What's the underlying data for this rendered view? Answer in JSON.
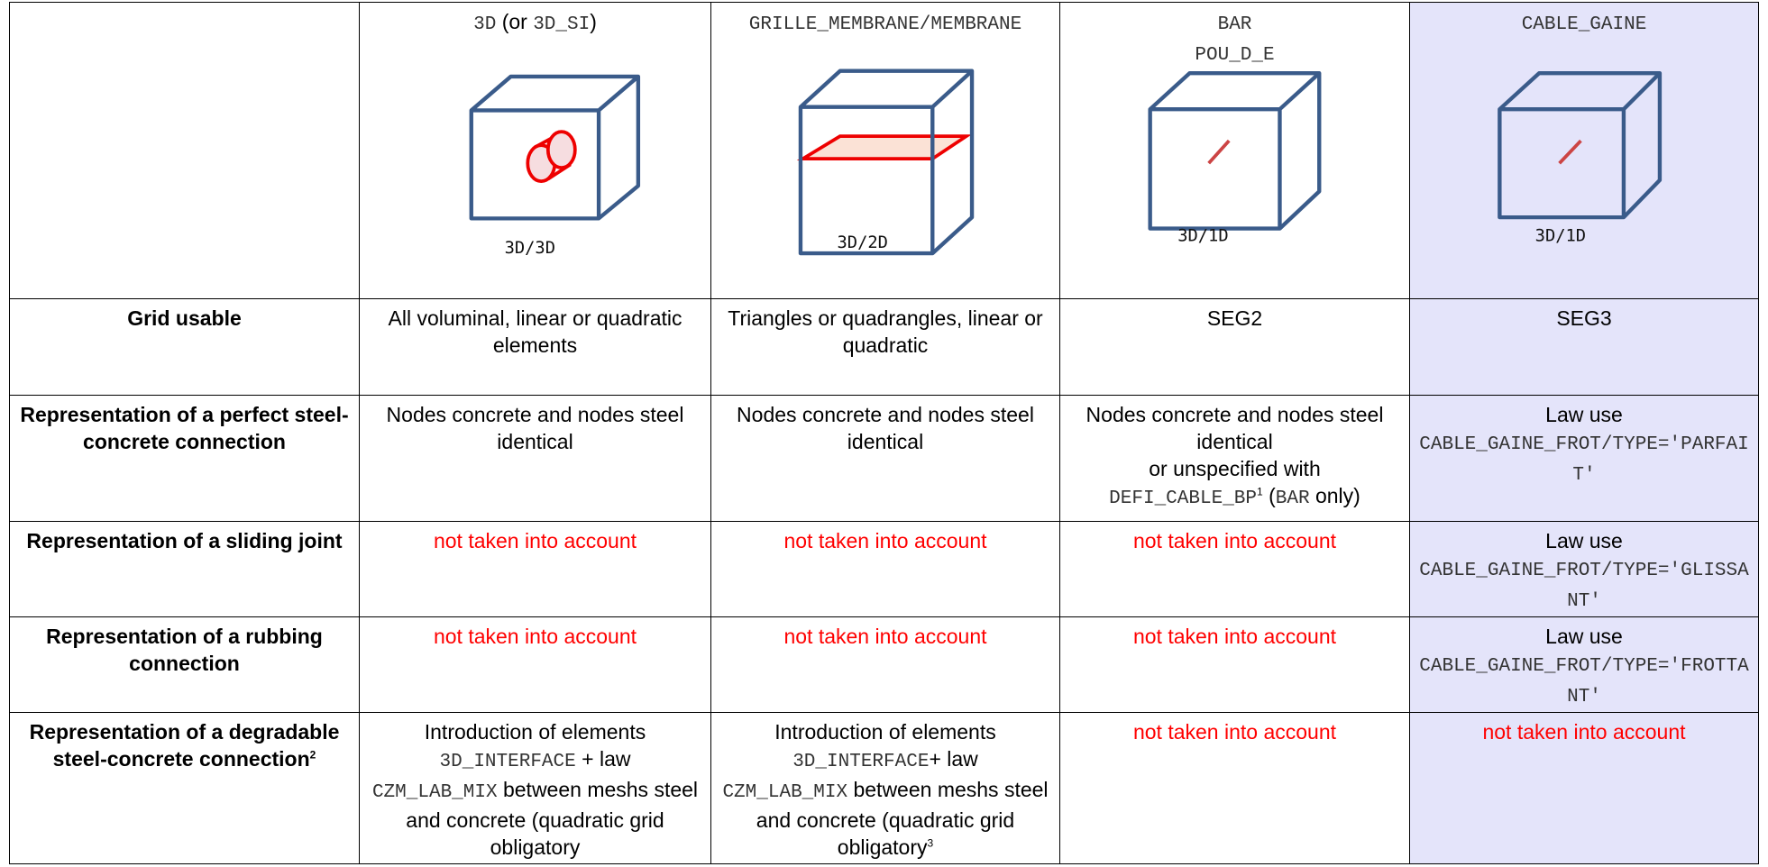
{
  "header": {
    "titles": [
      [
        [
          {
            "code": "3D"
          },
          " (or ",
          {
            "code": "3D_SI"
          },
          ")"
        ]
      ],
      [
        [
          {
            "code": "GRILLE_MEMBRANE/MEMBRANE"
          }
        ]
      ],
      [
        [
          {
            "code": "BAR"
          }
        ],
        [
          {
            "code": "POU_D_E"
          }
        ]
      ],
      [
        [
          {
            "code": "CABLE_GAINE"
          }
        ]
      ]
    ],
    "figures": [
      "3D/3D",
      "3D/2D",
      "3D/1D",
      "3D/1D"
    ],
    "highlight_color": "#e4e4fa"
  },
  "rows": [
    {
      "header": [
        "Grid usable"
      ],
      "cells": [
        [
          [
            "All voluminal, linear or quadratic elements"
          ]
        ],
        [
          [
            "Triangles or quadrangles, linear or quadratic"
          ]
        ],
        [
          [
            "SEG2"
          ]
        ],
        [
          [
            "SEG3"
          ]
        ]
      ]
    },
    {
      "header": [
        "Representation of a perfect steel-concrete connection"
      ],
      "cells": [
        [
          [
            "Nodes concrete and nodes steel identical"
          ]
        ],
        [
          [
            "Nodes concrete and nodes steel identical"
          ]
        ],
        [
          [
            "Nodes concrete and nodes steel identical"
          ],
          [
            "or unspecified with"
          ],
          [
            {
              "code": "DEFI_CABLE_BP"
            },
            {
              "sup": "1"
            },
            " (",
            {
              "code": "BAR"
            },
            " only)"
          ]
        ],
        [
          [
            "Law use"
          ],
          [
            {
              "code": "CABLE_GAINE_FROT/TYPE='PARFAIT'"
            }
          ]
        ]
      ]
    },
    {
      "header": [
        "Representation of a sliding joint"
      ],
      "cells": [
        [
          [
            {
              "text": "not taken into account",
              "color": "#ff0000"
            }
          ]
        ],
        [
          [
            {
              "text": "not taken into account",
              "color": "#ff0000"
            }
          ]
        ],
        [
          [
            {
              "text": "not taken into account",
              "color": "#ff0000"
            }
          ]
        ],
        [
          [
            "Law use"
          ],
          [
            {
              "code": "CABLE_GAINE_FROT/TYPE='GLISSANT'"
            }
          ]
        ]
      ]
    },
    {
      "header": [
        "Representation of a rubbing connection"
      ],
      "cells": [
        [
          [
            {
              "text": "not taken into account",
              "color": "#ff0000"
            }
          ]
        ],
        [
          [
            {
              "text": "not taken into account",
              "color": "#ff0000"
            }
          ]
        ],
        [
          [
            {
              "text": "not taken into account",
              "color": "#ff0000"
            }
          ]
        ],
        [
          [
            "Law use"
          ],
          [
            {
              "code": "CABLE_GAINE_FROT/TYPE='FROTTANT'"
            }
          ]
        ]
      ]
    },
    {
      "header": [
        "Representation of a degradable steel-concrete connection",
        {
          "sup": "2"
        }
      ],
      "cells": [
        [
          [
            "Introduction of elements"
          ],
          [
            {
              "code": "3D_INTERFACE"
            },
            " + law"
          ],
          [
            {
              "code": "CZM_LAB_MIX"
            },
            " between meshs steel and concrete (quadratic grid obligatory"
          ]
        ],
        [
          [
            "Introduction of elements"
          ],
          [
            {
              "code": "3D_INTERFACE"
            },
            "+ law"
          ],
          [
            {
              "code": "CZM_LAB_MIX"
            },
            " between meshs steel and concrete (quadratic grid obligatory",
            {
              "sup": "3"
            }
          ]
        ],
        [
          [
            {
              "text": "not taken into account",
              "color": "#ff0000"
            }
          ]
        ],
        [
          [
            {
              "text": "not taken into account",
              "color": "#ff0000"
            }
          ]
        ]
      ]
    }
  ]
}
